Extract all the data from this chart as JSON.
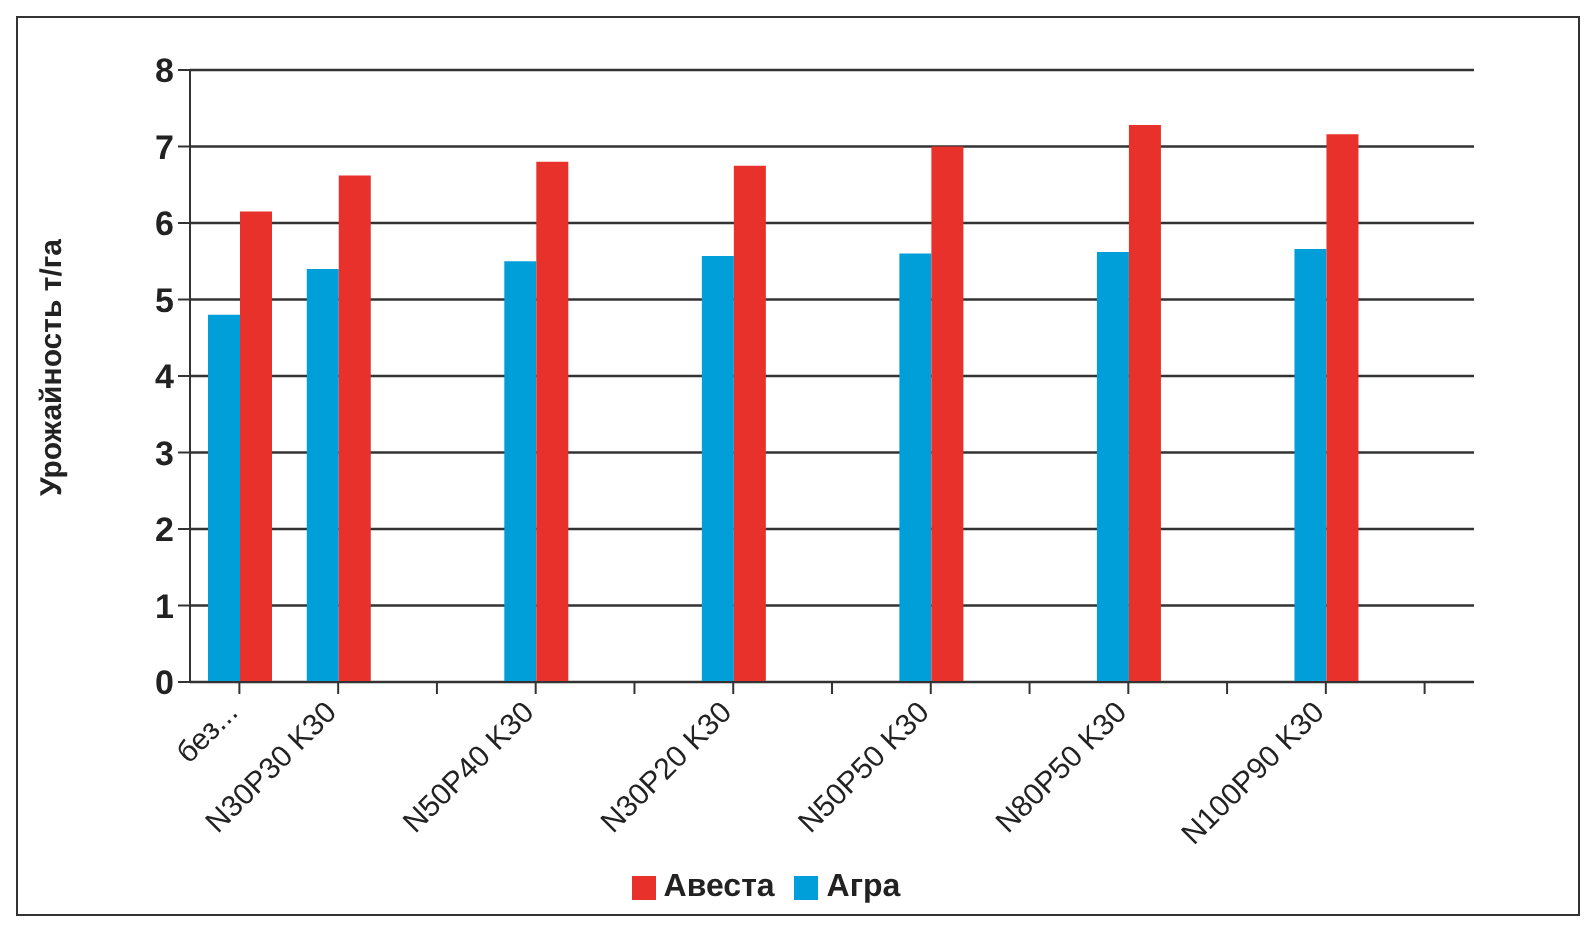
{
  "chart_data": {
    "type": "bar",
    "ylabel": "Урожайность т/га",
    "categories": [
      "без...",
      "N30P30 K30",
      null,
      "N50P40 K30",
      null,
      "N30P20 K30",
      null,
      "N50P50 K30",
      null,
      "N80P50 K30",
      null,
      "N100P90 K30",
      null
    ],
    "series": [
      {
        "name": "Агра",
        "color": "#009fda",
        "values": [
          4.8,
          5.4,
          null,
          5.5,
          null,
          5.57,
          null,
          5.6,
          null,
          5.62,
          null,
          5.66,
          null
        ]
      },
      {
        "name": "Авеста",
        "color": "#e8312a",
        "values": [
          6.15,
          6.62,
          null,
          6.8,
          null,
          6.75,
          null,
          7.0,
          null,
          7.28,
          null,
          7.16,
          null
        ]
      }
    ],
    "ylim": [
      0,
      8
    ],
    "yticks": [
      0,
      1,
      2,
      3,
      4,
      5,
      6,
      7,
      8
    ],
    "grid": "y",
    "legend": "bottom"
  }
}
